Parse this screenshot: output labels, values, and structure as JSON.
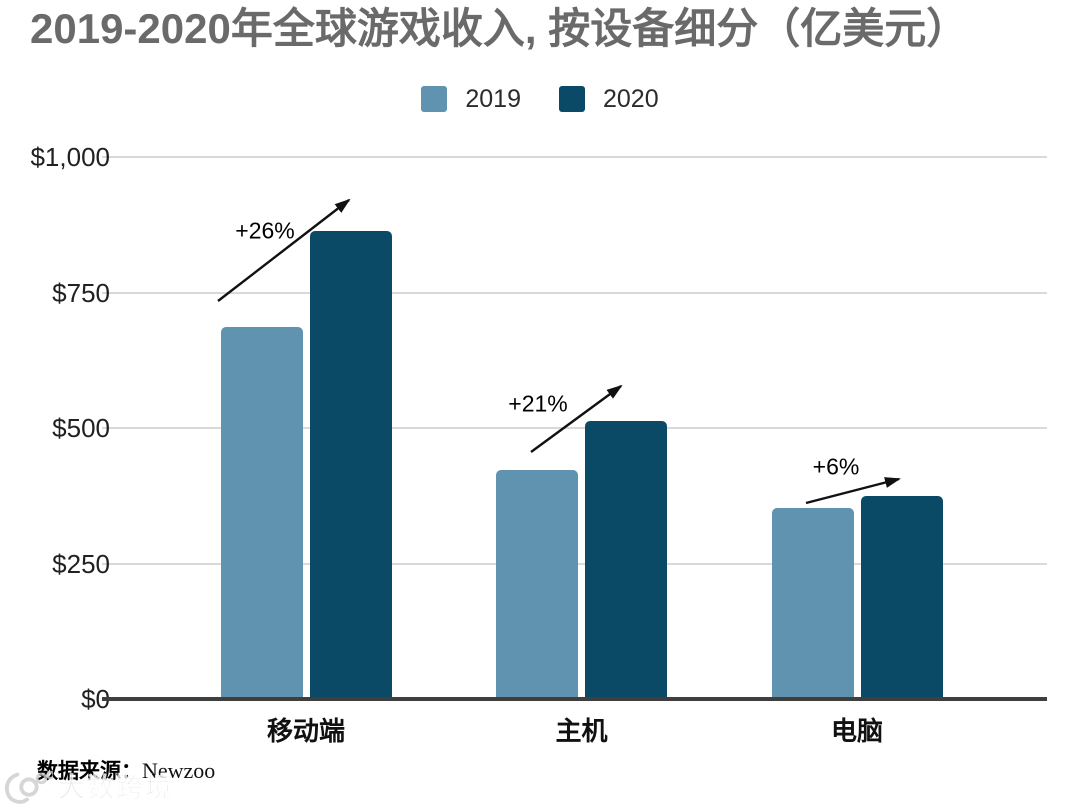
{
  "title": "2019-2020年全球游戏收入, 按设备细分（亿美元）",
  "chart_data": {
    "type": "bar",
    "categories": [
      "移动端",
      "主机",
      "电脑"
    ],
    "series": [
      {
        "name": "2019",
        "color": "#6093AF",
        "values": [
          687,
          423,
          352
        ]
      },
      {
        "name": "2020",
        "color": "#0A4A66",
        "values": [
          863,
          512,
          374
        ]
      }
    ],
    "xlabel": "",
    "ylabel": "",
    "ylim": [
      0,
      1000
    ],
    "yticks": [
      0,
      250,
      500,
      750,
      1000
    ],
    "ytick_labels": [
      "$0",
      "$250",
      "$500",
      "$750",
      "$1,000"
    ],
    "grid": true,
    "legend_position": "top-center",
    "annotations": [
      {
        "label": "+26%",
        "label_x": 265,
        "label_y": 231,
        "arrow": [
          218,
          301,
          349,
          200
        ]
      },
      {
        "label": "+21%",
        "label_x": 538,
        "label_y": 404,
        "arrow": [
          531,
          452,
          621,
          386
        ]
      },
      {
        "label": "+6%",
        "label_x": 836,
        "label_y": 467,
        "arrow": [
          806,
          503,
          899,
          479
        ]
      }
    ]
  },
  "source": {
    "prefix": "数据来源：",
    "name": "Newzoo"
  },
  "watermark": {
    "text": "大数跨境",
    "icon": "curl-00-logo-icon"
  },
  "colors": {
    "title": "#6A6A6A",
    "axis_text": "#212121",
    "gridline": "#D9D9D9",
    "axis_line": "#3F3F3F",
    "annotation": "#000000",
    "background": "#FFFFFF"
  }
}
